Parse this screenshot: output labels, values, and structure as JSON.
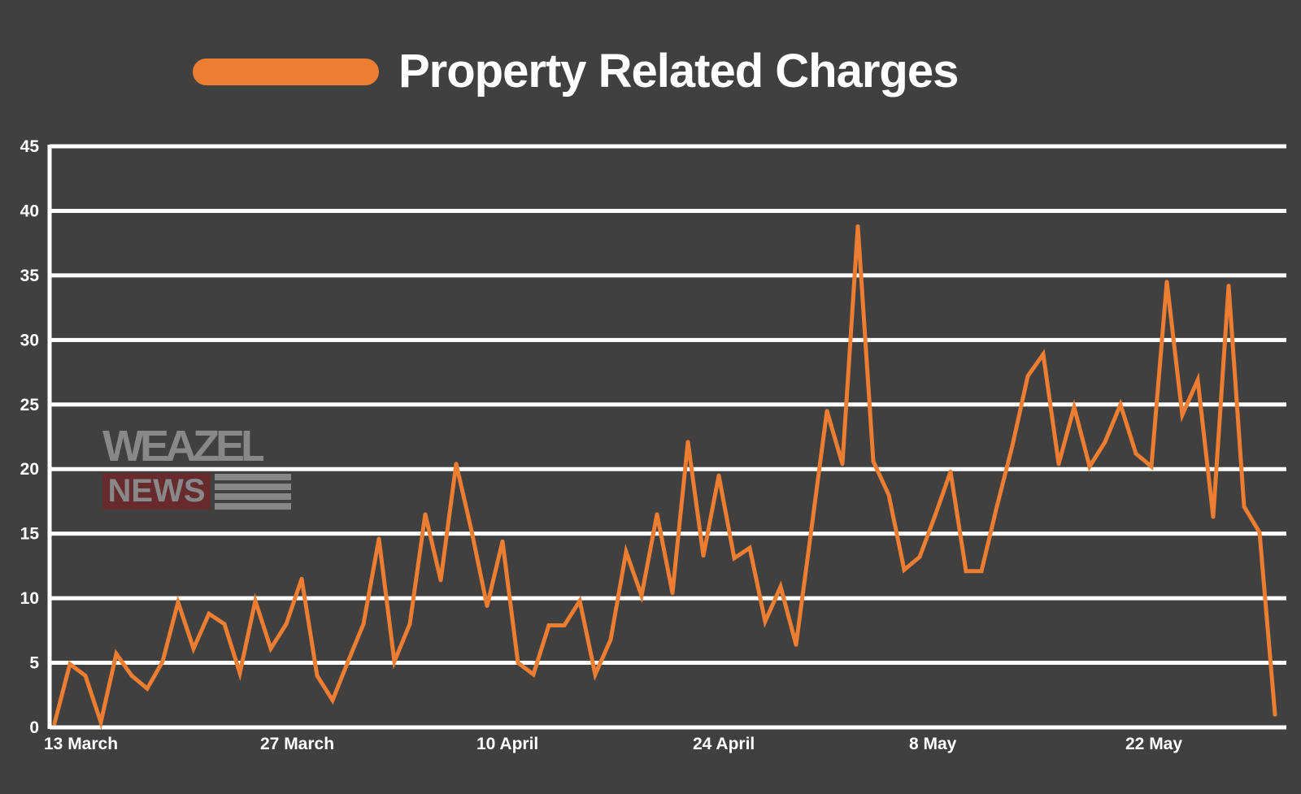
{
  "chart_data": {
    "type": "line",
    "title": "Property Related Charges",
    "legend": [
      {
        "name": "Property Related Charges",
        "color": "#ED7D31"
      }
    ],
    "legend_placement": "top",
    "xlabel": "",
    "ylabel": "",
    "ylim": [
      0,
      45
    ],
    "yticks": [
      "0",
      "5",
      "10",
      "15",
      "20",
      "25",
      "30",
      "35",
      "40",
      "45"
    ],
    "grid": true,
    "x_start": "13 March",
    "x_end": "31 May",
    "x_interval": "daily",
    "xtick_labels": [
      {
        "label": "13 March",
        "day_index": 0
      },
      {
        "label": "27 March",
        "day_index": 14
      },
      {
        "label": "10 April",
        "day_index": 28
      },
      {
        "label": "24 April",
        "day_index": 42
      },
      {
        "label": "8 May",
        "day_index": 56
      },
      {
        "label": "22 May",
        "day_index": 70
      }
    ],
    "series": [
      {
        "name": "Property Related Charges",
        "color": "#ED7D31",
        "values": [
          0.3,
          4.9,
          4.0,
          0.4,
          5.7,
          4.0,
          3.0,
          5.1,
          9.7,
          6.1,
          8.8,
          8.0,
          4.2,
          9.8,
          6.1,
          8.0,
          11.5,
          4.0,
          2.1,
          5.1,
          8.0,
          14.6,
          5.1,
          8.0,
          16.5,
          11.4,
          20.4,
          15.2,
          9.4,
          14.4,
          5.0,
          4.1,
          7.9,
          7.9,
          9.8,
          4.1,
          6.8,
          13.6,
          10.2,
          16.5,
          10.4,
          22.1,
          13.3,
          19.5,
          13.1,
          13.9,
          8.2,
          10.9,
          6.4,
          15.4,
          24.5,
          20.4,
          38.8,
          20.6,
          18.0,
          12.2,
          13.2,
          16.4,
          19.8,
          12.1,
          12.1,
          17.1,
          21.8,
          27.2,
          28.9,
          20.4,
          24.8,
          20.2,
          22.1,
          25.0,
          21.2,
          20.2,
          34.5,
          24.2,
          26.9,
          16.3,
          34.2,
          17.1,
          15.1,
          1.0
        ]
      }
    ]
  },
  "watermark": {
    "line1": "WEAZEL",
    "line2": "NEWS"
  }
}
